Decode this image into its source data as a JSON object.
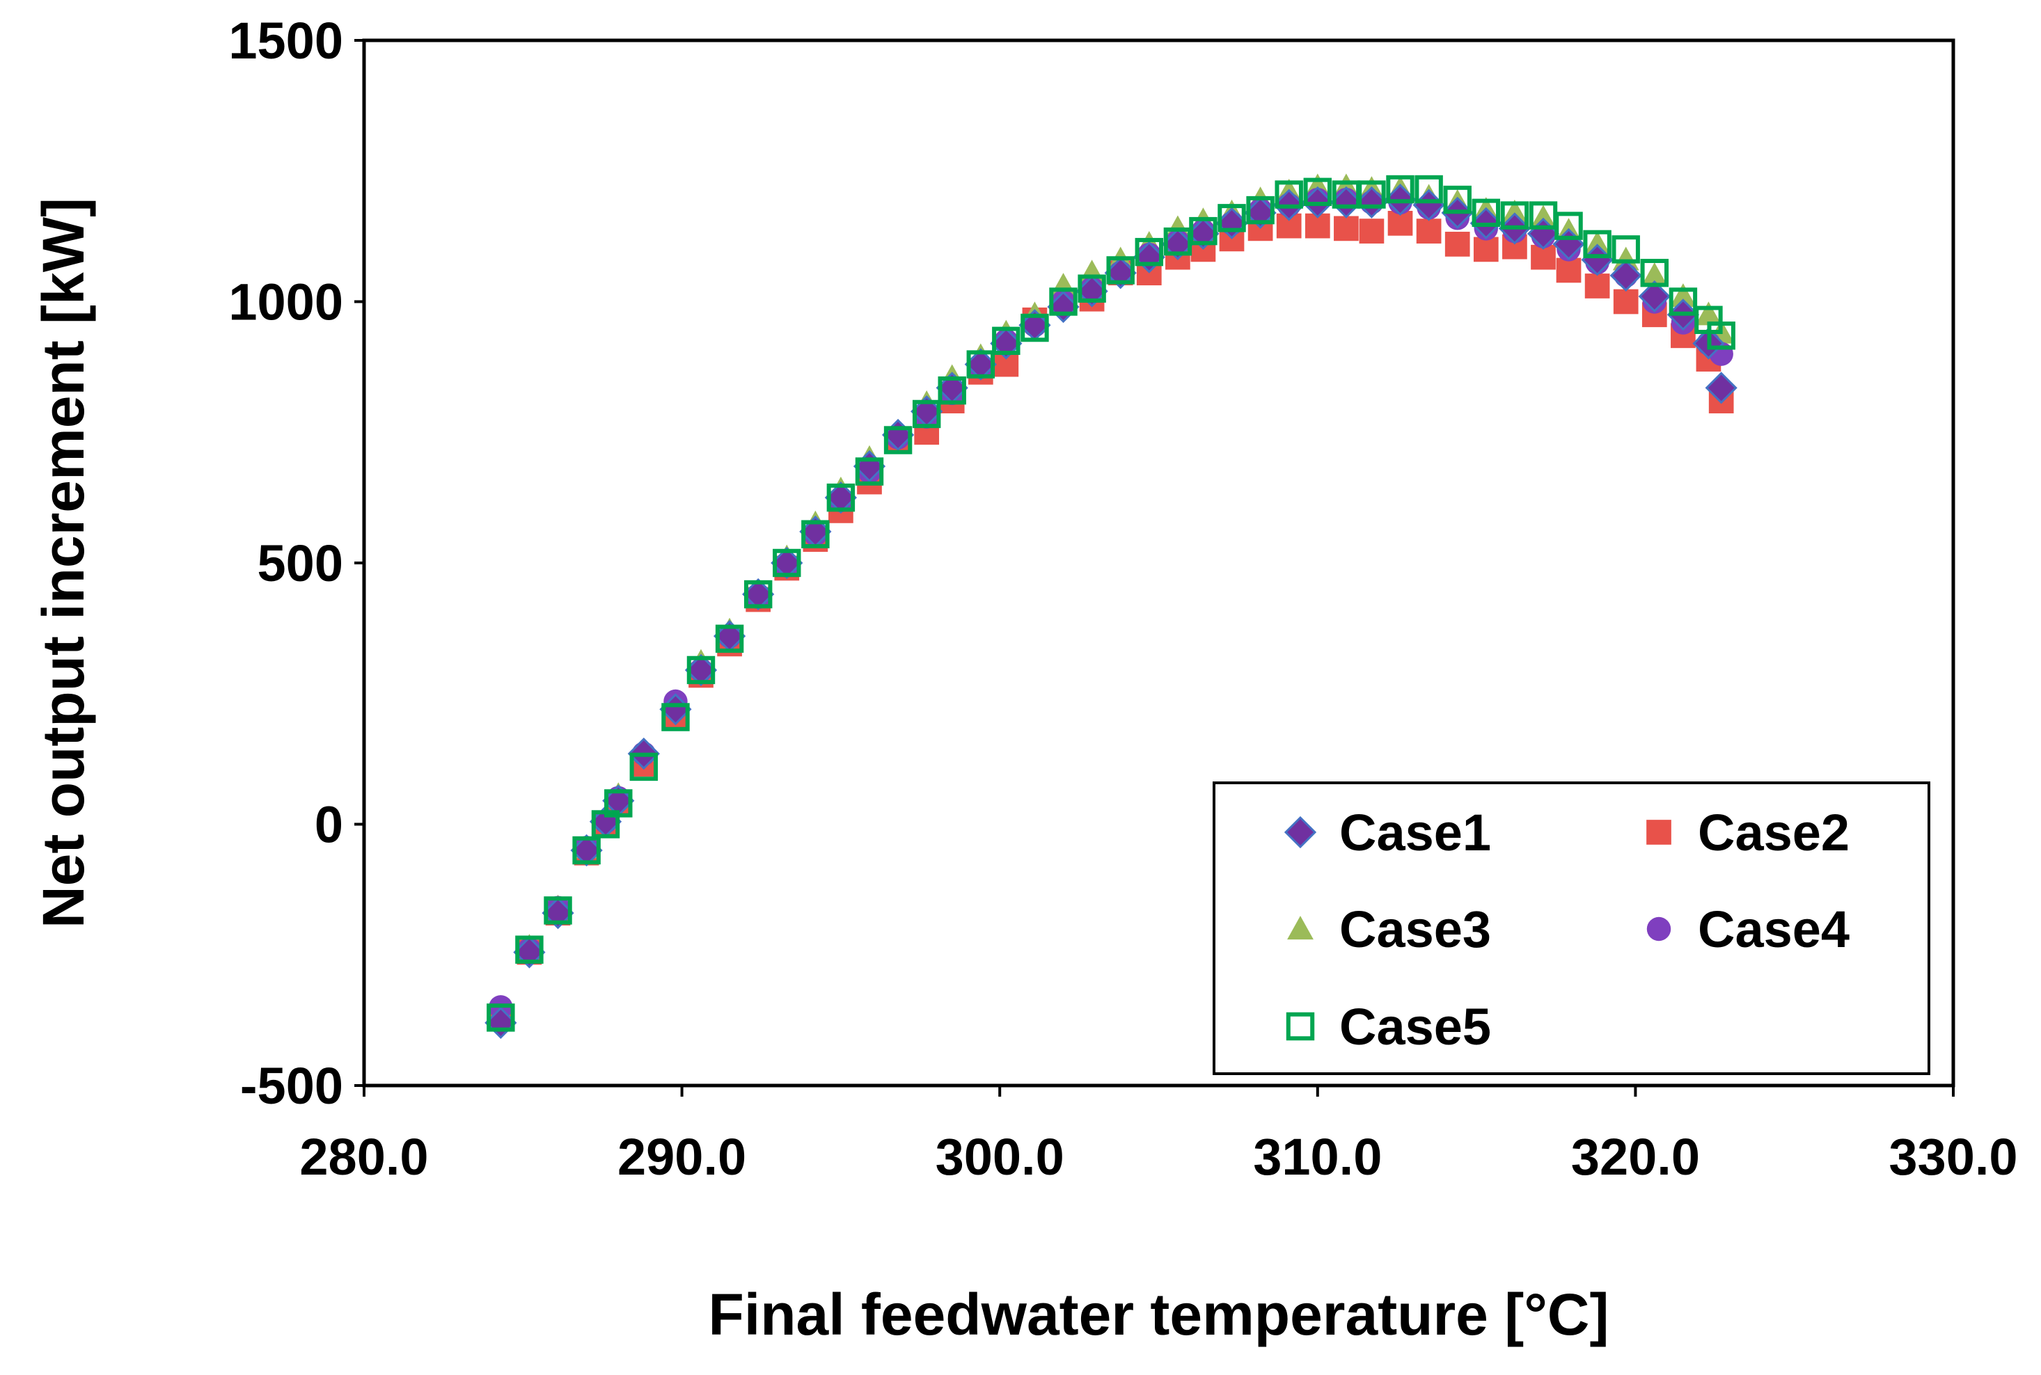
{
  "chart_data": {
    "type": "scatter",
    "title": "",
    "xlabel": "Final feedwater temperature [°C]",
    "ylabel": "Net output increment  [kW]",
    "xlim": [
      280.0,
      330.0
    ],
    "ylim": [
      -500,
      1500
    ],
    "xticks": [
      280.0,
      290.0,
      300.0,
      310.0,
      320.0,
      330.0
    ],
    "xtick_labels": [
      "280.0",
      "290.0",
      "300.0",
      "310.0",
      "320.0",
      "330.0"
    ],
    "yticks": [
      -500,
      0,
      500,
      1000,
      1500
    ],
    "ytick_labels": [
      "-500",
      "0",
      "500",
      "1000",
      "1500"
    ],
    "grid": false,
    "legend_position": "bottom-right",
    "series": [
      {
        "name": "Case1",
        "marker": "diamond",
        "color": "#7030A0",
        "edge": "#4472C4",
        "x": [
          284.3,
          285.2,
          286.1,
          287.0,
          287.6,
          288.0,
          288.8,
          289.8,
          290.6,
          291.5,
          292.4,
          293.3,
          294.2,
          295.0,
          295.9,
          296.8,
          297.7,
          298.5,
          299.4,
          300.2,
          301.1,
          302.0,
          302.9,
          303.8,
          304.7,
          305.6,
          306.4,
          307.3,
          308.2,
          309.1,
          310.0,
          310.9,
          311.7,
          312.6,
          313.5,
          314.4,
          315.3,
          316.2,
          317.1,
          317.9,
          318.8,
          319.7,
          320.6,
          321.5,
          322.3,
          322.7
        ],
        "y": [
          -380,
          -245,
          -170,
          -50,
          5,
          45,
          135,
          220,
          295,
          360,
          440,
          500,
          560,
          625,
          685,
          745,
          790,
          835,
          880,
          920,
          955,
          990,
          1020,
          1055,
          1085,
          1110,
          1130,
          1150,
          1170,
          1185,
          1190,
          1190,
          1190,
          1195,
          1185,
          1170,
          1150,
          1140,
          1130,
          1110,
          1080,
          1050,
          1010,
          975,
          920,
          835
        ]
      },
      {
        "name": "Case2",
        "marker": "square",
        "color": "#E8524A",
        "edge": "#E8524A",
        "x": [
          284.3,
          285.2,
          286.1,
          287.0,
          287.6,
          288.0,
          288.8,
          289.8,
          290.6,
          291.5,
          292.4,
          293.3,
          294.2,
          295.0,
          295.9,
          296.8,
          297.7,
          298.5,
          299.4,
          300.2,
          301.1,
          302.0,
          302.9,
          303.8,
          304.7,
          305.6,
          306.4,
          307.3,
          308.2,
          309.1,
          310.0,
          310.9,
          311.7,
          312.6,
          313.5,
          314.4,
          315.3,
          316.2,
          317.1,
          317.9,
          318.8,
          319.7,
          320.6,
          321.5,
          322.3,
          322.7
        ],
        "y": [
          -370,
          -245,
          -170,
          -55,
          0,
          40,
          115,
          205,
          285,
          345,
          430,
          490,
          545,
          600,
          655,
          735,
          750,
          810,
          865,
          880,
          965,
          1000,
          1005,
          1055,
          1055,
          1085,
          1100,
          1120,
          1140,
          1145,
          1145,
          1140,
          1135,
          1150,
          1135,
          1110,
          1100,
          1105,
          1085,
          1060,
          1030,
          1000,
          975,
          935,
          890,
          810
        ]
      },
      {
        "name": "Case3",
        "marker": "triangle",
        "color": "#9BBB59",
        "edge": "#9BBB59",
        "x": [
          284.3,
          285.2,
          286.1,
          287.0,
          287.6,
          288.0,
          288.8,
          289.8,
          290.6,
          291.5,
          292.4,
          293.3,
          294.2,
          295.0,
          295.9,
          296.8,
          297.7,
          298.5,
          299.4,
          300.2,
          301.1,
          302.0,
          302.9,
          303.8,
          304.7,
          305.6,
          306.4,
          307.3,
          308.2,
          309.1,
          310.0,
          310.9,
          311.7,
          312.6,
          313.5,
          314.4,
          315.3,
          316.2,
          317.1,
          317.9,
          318.8,
          319.7,
          320.6,
          321.5,
          322.3,
          322.7
        ],
        "y": [
          -360,
          -235,
          -160,
          -45,
          10,
          55,
          140,
          230,
          310,
          370,
          445,
          510,
          575,
          640,
          700,
          750,
          805,
          855,
          895,
          940,
          975,
          1030,
          1055,
          1080,
          1110,
          1140,
          1155,
          1170,
          1195,
          1210,
          1220,
          1220,
          1215,
          1215,
          1200,
          1190,
          1175,
          1170,
          1160,
          1135,
          1110,
          1080,
          1050,
          1010,
          975,
          940
        ]
      },
      {
        "name": "Case4",
        "marker": "circle",
        "color": "#7F3FBF",
        "edge": "#7F3FBF",
        "x": [
          284.3,
          285.2,
          286.1,
          287.0,
          287.6,
          288.0,
          288.8,
          289.8,
          290.6,
          291.5,
          292.4,
          293.3,
          294.2,
          295.0,
          295.9,
          296.8,
          297.7,
          298.5,
          299.4,
          300.2,
          301.1,
          302.0,
          302.9,
          303.8,
          304.7,
          305.6,
          306.4,
          307.3,
          308.2,
          309.1,
          310.0,
          310.9,
          311.7,
          312.6,
          313.5,
          314.4,
          315.3,
          316.2,
          317.1,
          317.9,
          318.8,
          319.7,
          320.6,
          321.5,
          322.3,
          322.7
        ],
        "y": [
          -350,
          -240,
          -160,
          -45,
          5,
          50,
          135,
          235,
          295,
          360,
          435,
          495,
          555,
          620,
          675,
          740,
          780,
          825,
          875,
          925,
          955,
          1000,
          1025,
          1055,
          1090,
          1115,
          1135,
          1150,
          1175,
          1185,
          1195,
          1195,
          1190,
          1190,
          1180,
          1160,
          1140,
          1135,
          1125,
          1100,
          1075,
          1050,
          1000,
          960,
          920,
          900
        ]
      },
      {
        "name": "Case5",
        "marker": "open-square",
        "color": "#00A651",
        "edge": "#00A651",
        "x": [
          284.3,
          285.2,
          286.1,
          287.0,
          287.6,
          288.0,
          288.8,
          289.8,
          290.6,
          291.5,
          292.4,
          293.3,
          294.2,
          295.0,
          295.9,
          296.8,
          297.7,
          298.5,
          299.4,
          300.2,
          301.1,
          302.0,
          302.9,
          303.8,
          304.7,
          305.6,
          306.4,
          307.3,
          308.2,
          309.1,
          310.0,
          310.9,
          311.7,
          312.6,
          313.5,
          314.4,
          315.3,
          316.2,
          317.1,
          317.9,
          318.8,
          319.7,
          320.6,
          321.5,
          322.3,
          322.7
        ],
        "y": [
          -370,
          -240,
          -165,
          -50,
          0,
          40,
          110,
          205,
          295,
          355,
          440,
          500,
          555,
          625,
          675,
          735,
          785,
          830,
          880,
          925,
          950,
          1000,
          1025,
          1060,
          1095,
          1115,
          1135,
          1160,
          1175,
          1205,
          1210,
          1205,
          1205,
          1215,
          1215,
          1195,
          1170,
          1165,
          1165,
          1145,
          1110,
          1100,
          1055,
          1000,
          965,
          935
        ]
      }
    ]
  }
}
